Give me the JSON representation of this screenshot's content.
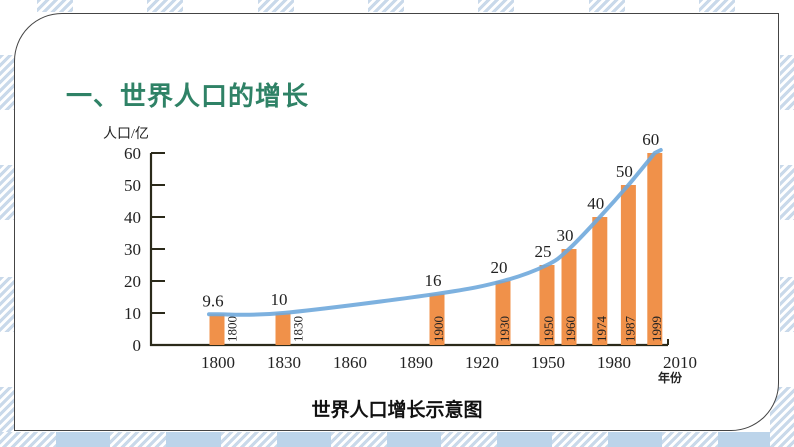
{
  "slide": {
    "title": "一、世界人口的增长",
    "caption": "世界人口增长示意图"
  },
  "colors": {
    "title_green": "#2f8266",
    "bar_orange": "#f0914a",
    "curve_blue": "#6fa8dc",
    "axis_dark": "#2b2a1a",
    "background_hatch": "#c9d9ea"
  },
  "chart_data": {
    "type": "bar",
    "title": "世界人口增长示意图",
    "xlabel": "年份",
    "ylabel": "人口/亿",
    "ylim": [
      0,
      60
    ],
    "y_ticks": [
      0,
      10,
      20,
      30,
      40,
      50,
      60
    ],
    "x_ticks": [
      1800,
      1830,
      1860,
      1890,
      1920,
      1950,
      1980,
      2010
    ],
    "categories": [
      "1800",
      "1830",
      "1900",
      "1930",
      "1950",
      "1960",
      "1974",
      "1987",
      "1999"
    ],
    "values": [
      9.6,
      10,
      16,
      20,
      25,
      30,
      40,
      50,
      60
    ],
    "value_labels": [
      "9.6",
      "10",
      "16",
      "20",
      "25",
      "30",
      "40",
      "50",
      "60"
    ],
    "overlay": {
      "type": "line",
      "description": "smooth growth curve through bar tops",
      "color": "#6fa8dc"
    },
    "grid": false,
    "legend": null
  }
}
